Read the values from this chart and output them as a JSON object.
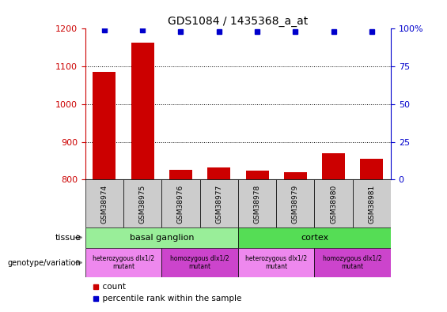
{
  "title": "GDS1084 / 1435368_a_at",
  "samples": [
    "GSM38974",
    "GSM38975",
    "GSM38976",
    "GSM38977",
    "GSM38978",
    "GSM38979",
    "GSM38980",
    "GSM38981"
  ],
  "counts": [
    1085,
    1162,
    826,
    832,
    825,
    820,
    870,
    855
  ],
  "percentiles": [
    99,
    99,
    98,
    98,
    98,
    98,
    98,
    98
  ],
  "ylim_left": [
    800,
    1200
  ],
  "ylim_right": [
    0,
    100
  ],
  "yticks_left": [
    800,
    900,
    1000,
    1100,
    1200
  ],
  "yticks_right": [
    0,
    25,
    50,
    75,
    100
  ],
  "bar_color": "#cc0000",
  "dot_color": "#0000cc",
  "tissue_groups": [
    {
      "label": "basal ganglion",
      "start": 0,
      "end": 3,
      "color": "#99ee99"
    },
    {
      "label": "cortex",
      "start": 4,
      "end": 7,
      "color": "#55dd55"
    }
  ],
  "genotype_groups": [
    {
      "label": "heterozygous dlx1/2\nmutant",
      "start": 0,
      "end": 1,
      "color": "#ee88ee"
    },
    {
      "label": "homozygous dlx1/2\nmutant",
      "start": 2,
      "end": 3,
      "color": "#cc44cc"
    },
    {
      "label": "heterozygous dlx1/2\nmutant",
      "start": 4,
      "end": 5,
      "color": "#ee88ee"
    },
    {
      "label": "homozygous dlx1/2\nmutant",
      "start": 6,
      "end": 7,
      "color": "#cc44cc"
    }
  ],
  "sample_box_color": "#cccccc",
  "tick_label_color_left": "#cc0000",
  "tick_label_color_right": "#0000cc",
  "legend_items": [
    {
      "label": "count",
      "color": "#cc0000",
      "marker": "s"
    },
    {
      "label": "percentile rank within the sample",
      "color": "#0000cc",
      "marker": "s"
    }
  ]
}
